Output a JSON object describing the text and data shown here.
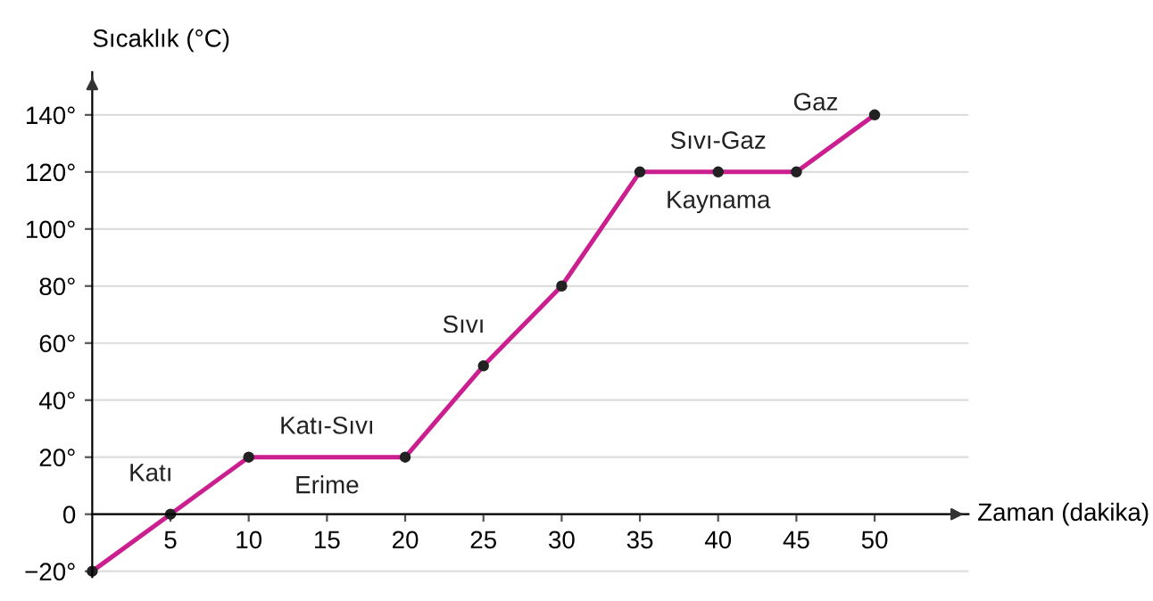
{
  "chart_data": {
    "type": "line",
    "xlabel": "Zaman (dakika)",
    "ylabel": "Sıcaklık (°C)",
    "x": [
      0,
      5,
      10,
      20,
      25,
      30,
      35,
      40,
      45,
      50
    ],
    "series": [
      {
        "color": "#cc1f8f",
        "values": [
          -20,
          0,
          20,
          20,
          52,
          80,
          120,
          120,
          120,
          140
        ]
      }
    ],
    "xlim": [
      0,
      56
    ],
    "ylim": [
      -22,
      155
    ],
    "xticks": [
      5,
      10,
      15,
      20,
      25,
      30,
      35,
      40,
      45,
      50
    ],
    "yticks": [
      {
        "value": -20,
        "label": "−20°"
      },
      0,
      {
        "value": 20,
        "label": "20°"
      },
      {
        "value": 40,
        "label": "40°"
      },
      {
        "value": 60,
        "label": "60°"
      },
      {
        "value": 80,
        "label": "80°"
      },
      {
        "value": 100,
        "label": "100°"
      },
      {
        "value": 120,
        "label": "120°"
      },
      {
        "value": 140,
        "label": "140°"
      }
    ],
    "grid": "y",
    "marker": "circle",
    "line_style": "solid",
    "annotations": [
      {
        "text": "Katı",
        "x": 5,
        "y": 0
      },
      {
        "text": "Katı-Sıvı",
        "x": 15,
        "y": 20
      },
      {
        "text": "Erime",
        "x": 15,
        "y": 20
      },
      {
        "text": "Sıvı",
        "x": 25,
        "y": 52
      },
      {
        "text": "Sıvı-Gaz",
        "x": 40,
        "y": 120
      },
      {
        "text": "Kaynama",
        "x": 40,
        "y": 120
      },
      {
        "text": "Gaz",
        "x": 47.5,
        "y": 130
      }
    ]
  }
}
